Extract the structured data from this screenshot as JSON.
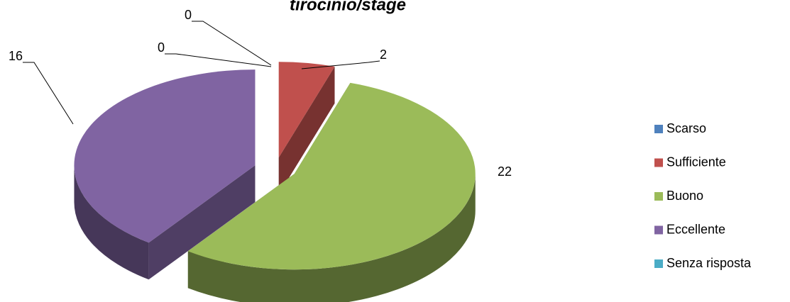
{
  "chart_data": {
    "type": "pie",
    "title": "tirocinio/stage",
    "categories": [
      "Scarso",
      "Sufficiente",
      "Buono",
      "Eccellente",
      "Senza risposta"
    ],
    "values": [
      0,
      2,
      22,
      16,
      0
    ],
    "colors": [
      "#4f81bd",
      "#c0504d",
      "#9bbb59",
      "#8064a2",
      "#4bacc6"
    ],
    "legend": "right"
  }
}
